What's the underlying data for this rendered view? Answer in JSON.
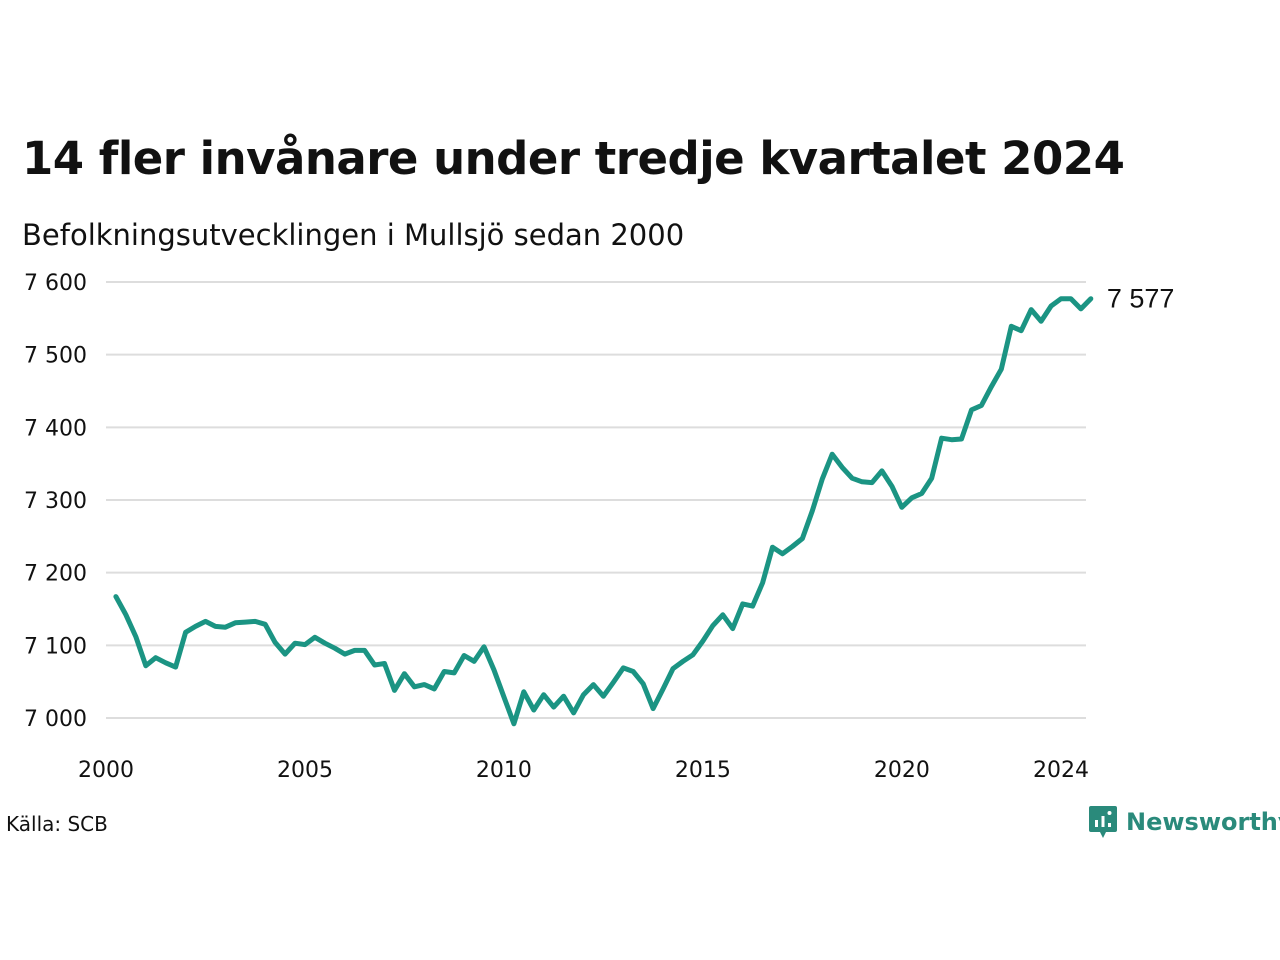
{
  "header": {
    "title": "14 fler invånare under tredje kvartalet 2024",
    "subtitle": "Befolkningsutvecklingen i Mullsjö sedan 2000"
  },
  "footer": {
    "source": "Källa: SCB",
    "brand": "Newsworthy",
    "brand_color": "#2a8a7b"
  },
  "chart_data": {
    "type": "line",
    "title": "14 fler invånare under tredje kvartalet 2024",
    "subtitle": "Befolkningsutvecklingen i Mullsjö sedan 2000",
    "xlabel": "",
    "ylabel": "",
    "x_ticks": [
      "2000",
      "2005",
      "2010",
      "2015",
      "2020",
      "2024"
    ],
    "x_tick_values": [
      2000,
      2005,
      2010,
      2015,
      2020,
      2024
    ],
    "y_ticks": [
      "7 000",
      "7 100",
      "7 200",
      "7 300",
      "7 400",
      "7 500",
      "7 600"
    ],
    "y_tick_values": [
      7000,
      7100,
      7200,
      7300,
      7400,
      7500,
      7600
    ],
    "xlim": [
      2000,
      2024.75
    ],
    "ylim": [
      7000,
      7600
    ],
    "grid": "horizontal",
    "line_color": "#1b9483",
    "end_label": "7 577",
    "series": [
      {
        "x_start": 2000.25,
        "x_step": 0.25,
        "values": [
          7167,
          7142,
          7112,
          7072,
          7083,
          7076,
          7070,
          7118,
          7126,
          7133,
          7126,
          7125,
          7131,
          7132,
          7133,
          7129,
          7104,
          7088,
          7103,
          7101,
          7111,
          7103,
          7096,
          7088,
          7093,
          7093,
          7073,
          7075,
          7038,
          7061,
          7043,
          7046,
          7040,
          7064,
          7062,
          7086,
          7078,
          7098,
          7066,
          7029,
          6992,
          7036,
          7011,
          7032,
          7015,
          7030,
          7007,
          7032,
          7046,
          7030,
          7049,
          7069,
          7064,
          7047,
          7013,
          7040,
          7068,
          7078,
          7087,
          7106,
          7127,
          7142,
          7123,
          7157,
          7154,
          7186,
          7235,
          7226,
          7236,
          7247,
          7285,
          7329,
          7363,
          7345,
          7330,
          7325,
          7324,
          7340,
          7319,
          7290,
          7303,
          7309,
          7330,
          7385,
          7383,
          7384,
          7424,
          7430,
          7456,
          7480,
          7539,
          7533,
          7562,
          7546,
          7567,
          7577,
          7577,
          7563,
          7577
        ]
      }
    ]
  }
}
